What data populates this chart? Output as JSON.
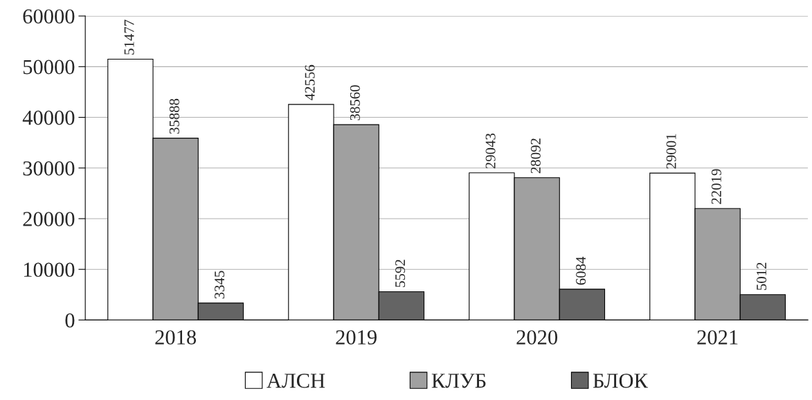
{
  "chart_data": {
    "type": "bar",
    "categories": [
      "2018",
      "2019",
      "2020",
      "2021"
    ],
    "series": [
      {
        "name": "АЛСН",
        "color": "#ffffff",
        "values": [
          51477,
          42556,
          29043,
          29001
        ]
      },
      {
        "name": "КЛУБ",
        "color": "#a0a0a0",
        "values": [
          35888,
          38560,
          28092,
          22019
        ]
      },
      {
        "name": "БЛОК",
        "color": "#646464",
        "values": [
          3345,
          5592,
          6084,
          5012
        ]
      }
    ],
    "ylim": [
      0,
      60000
    ],
    "yticks": [
      0,
      10000,
      20000,
      30000,
      40000,
      50000,
      60000
    ],
    "grid": "y",
    "legend": "bottom",
    "data_labels": true
  }
}
